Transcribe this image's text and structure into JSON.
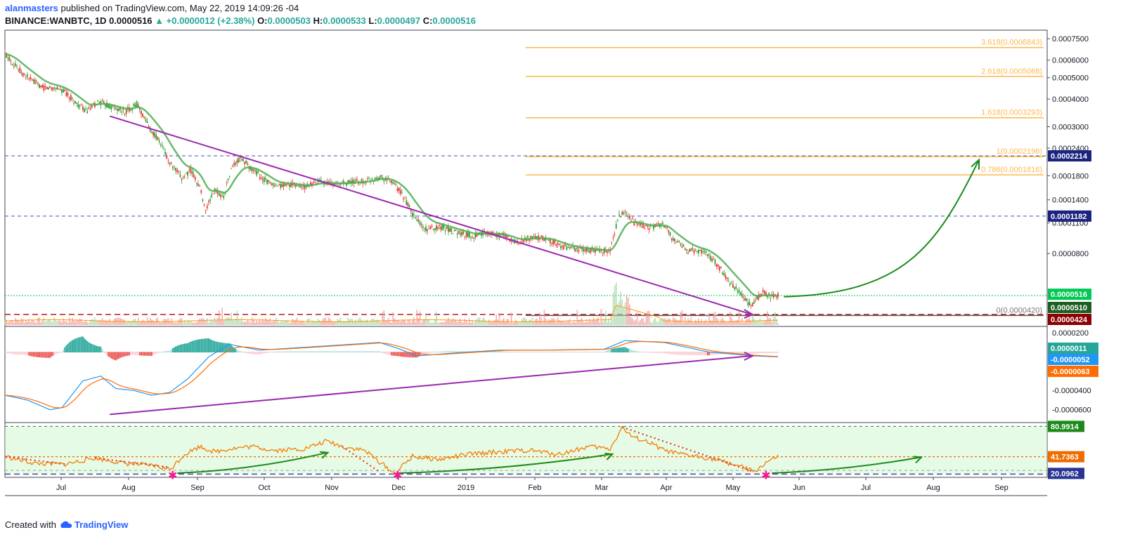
{
  "header": {
    "user": "alanmasters",
    "published": " published on TradingView.com, May 22, 2019 14:09:26 -04",
    "symbol": "BINANCE:WANBTC, 1D",
    "last": "0.0000516",
    "change": "+0.0000012 (+2.38%)",
    "open_label": "O:",
    "open": "0.0000503",
    "high_label": "H:",
    "high": "0.0000533",
    "low_label": "L:",
    "low": "0.0000497",
    "close_label": "C:",
    "close": "0.0000516"
  },
  "footer": {
    "created": "Created with",
    "brand": "TradingView"
  },
  "colors": {
    "up": "#26a69a",
    "down": "#ef5350",
    "ema": "#4caf50",
    "trend": "#9c27b0",
    "fib": "#ffb74d",
    "macd": "#2196f3",
    "signal": "#ff6d00",
    "rsi": "#f57c00",
    "arrow": "#1b8a1b",
    "blue_dash": "#3f51b5",
    "red_dash": "#b71c1c"
  },
  "chart_data": [
    {
      "type": "candlestick",
      "panel": "price",
      "scale": "log",
      "ylim": [
        3.8e-05,
        0.00082
      ],
      "y_ticks": [
        "0.0007500",
        "0.0006000",
        "0.0005000",
        "0.0004000",
        "0.0003000",
        "0.0002400",
        "0.0001800",
        "0.0001400",
        "0.0001100",
        "0.0000800"
      ],
      "x_ticks": [
        "Jul",
        "Aug",
        "Sep",
        "Oct",
        "Nov",
        "Dec",
        "2019",
        "Feb",
        "Mar",
        "Apr",
        "May",
        "Jun",
        "Jul",
        "Aug",
        "Sep"
      ],
      "fib_levels": [
        {
          "label": "3.618(0.0006843)",
          "value": 0.0006843
        },
        {
          "label": "2.618(0.0005068)",
          "value": 0.0005068
        },
        {
          "label": "1.618(0.0003293)",
          "value": 0.0003293
        },
        {
          "label": "1(0.0002196)",
          "value": 0.0002196
        },
        {
          "label": "0.786(0.0001816)",
          "value": 0.0001816
        },
        {
          "label": "0(0.0000420)",
          "value": 4.2e-05
        }
      ],
      "price_markers": [
        {
          "label": "0.0002214",
          "value": 0.0002214,
          "color": "#1a237e"
        },
        {
          "label": "0.0001182",
          "value": 0.0001182,
          "color": "#1a237e"
        },
        {
          "label": "0.0000516",
          "value": 5.16e-05,
          "color": "#00c853"
        },
        {
          "label": "0.0000510",
          "value": 5.1e-05,
          "color": "#1b5e20"
        },
        {
          "label": "0.0000424",
          "value": 4.24e-05,
          "color": "#8b0000"
        }
      ],
      "price_path": [
        [
          0,
          0.00064
        ],
        [
          12,
          0.00052
        ],
        [
          25,
          0.00045
        ],
        [
          35,
          0.00045
        ],
        [
          40,
          0.00043
        ],
        [
          48,
          0.00038
        ],
        [
          55,
          0.00035
        ],
        [
          62,
          0.00039
        ],
        [
          70,
          0.00037
        ],
        [
          80,
          0.00035
        ],
        [
          88,
          0.00038
        ],
        [
          96,
          0.0003
        ],
        [
          104,
          0.00025
        ],
        [
          110,
          0.000205
        ],
        [
          118,
          0.000175
        ],
        [
          124,
          0.00019
        ],
        [
          130,
          0.00016
        ],
        [
          134,
          0.000125
        ],
        [
          140,
          0.000155
        ],
        [
          146,
          0.000145
        ],
        [
          152,
          0.0002
        ],
        [
          158,
          0.000215
        ],
        [
          164,
          0.000195
        ],
        [
          172,
          0.000175
        ],
        [
          180,
          0.00016
        ],
        [
          190,
          0.000165
        ],
        [
          200,
          0.00016
        ],
        [
          210,
          0.00017
        ],
        [
          220,
          0.000165
        ],
        [
          230,
          0.000168
        ],
        [
          240,
          0.00017
        ],
        [
          250,
          0.000178
        ],
        [
          258,
          0.00017
        ],
        [
          266,
          0.000145
        ],
        [
          272,
          0.00012
        ],
        [
          280,
          0.000103
        ],
        [
          290,
          0.000106
        ],
        [
          300,
          0.000101
        ],
        [
          312,
          9.6e-05
        ],
        [
          322,
          9.9e-05
        ],
        [
          332,
          9.7e-05
        ],
        [
          342,
          9e-05
        ],
        [
          352,
          9.5e-05
        ],
        [
          362,
          9.3e-05
        ],
        [
          372,
          8.6e-05
        ],
        [
          382,
          8.4e-05
        ],
        [
          392,
          8.3e-05
        ],
        [
          398,
          8.2e-05
        ],
        [
          404,
          8.3e-05
        ],
        [
          410,
          0.000118
        ],
        [
          414,
          0.000125
        ],
        [
          420,
          0.00011
        ],
        [
          430,
          0.000105
        ],
        [
          440,
          0.000108
        ],
        [
          446,
          9.2e-05
        ],
        [
          456,
          8.3e-05
        ],
        [
          468,
          8.1e-05
        ],
        [
          476,
          7e-05
        ],
        [
          484,
          5.9e-05
        ],
        [
          492,
          5.2e-05
        ],
        [
          498,
          4.6e-05
        ],
        [
          502,
          5e-05
        ],
        [
          506,
          5.3e-05
        ],
        [
          512,
          5.1e-05
        ],
        [
          516,
          5.2e-05
        ]
      ],
      "trendline": [
        [
          0.000335,
          70
        ],
        [
          4.24e-05,
          500
        ]
      ],
      "projection_arrow": {
        "from": [
          5.1e-05,
          520
        ],
        "to": [
          0.000222,
          650
        ]
      }
    },
    {
      "type": "histogram+line",
      "panel": "macd",
      "y_ticks": [
        "0.0000200",
        "-0.0000400",
        "-0.0000600"
      ],
      "ylim": [
        -7.2e-05,
        2.6e-05
      ],
      "value_labels": [
        {
          "label": "0.0000011",
          "color": "#26a69a"
        },
        {
          "label": "-0.0000052",
          "color": "#2196f3"
        },
        {
          "label": "-0.0000063",
          "color": "#ff6d00"
        }
      ],
      "macd_path": [
        [
          0,
          -4.5e-05
        ],
        [
          15,
          -5e-05
        ],
        [
          30,
          -6e-05
        ],
        [
          38,
          -5.8e-05
        ],
        [
          52,
          -3e-05
        ],
        [
          64,
          -2.5e-05
        ],
        [
          74,
          -3.8e-05
        ],
        [
          86,
          -4e-05
        ],
        [
          98,
          -4.5e-05
        ],
        [
          110,
          -4.2e-05
        ],
        [
          122,
          -2.8e-05
        ],
        [
          136,
          -5e-06
        ],
        [
          150,
          8e-06
        ],
        [
          170,
          2e-06
        ],
        [
          190,
          4e-06
        ],
        [
          210,
          6e-06
        ],
        [
          230,
          8e-06
        ],
        [
          250,
          1e-05
        ],
        [
          262,
          4e-06
        ],
        [
          275,
          -4e-06
        ],
        [
          300,
          -1e-06
        ],
        [
          330,
          2e-06
        ],
        [
          360,
          2e-06
        ],
        [
          400,
          3e-06
        ],
        [
          414,
          1.2e-05
        ],
        [
          440,
          1e-05
        ],
        [
          470,
          0.0
        ],
        [
          500,
          -4e-06
        ],
        [
          516,
          -5e-06
        ]
      ],
      "trendline": [
        [
          -6.5e-05,
          70
        ],
        [
          -4e-06,
          500
        ]
      ]
    },
    {
      "type": "line",
      "panel": "rsi",
      "ylim": [
        15,
        85
      ],
      "value_labels": [
        {
          "label": "80.9914",
          "color": "#1b8a1b"
        },
        {
          "label": "41.7363",
          "color": "#ef6c00"
        },
        {
          "label": "20.0962",
          "color": "#283593"
        }
      ],
      "levels": [
        80.9914,
        41.7363,
        20.0962
      ],
      "rsi_path": [
        [
          0,
          42
        ],
        [
          20,
          33
        ],
        [
          40,
          32
        ],
        [
          60,
          40
        ],
        [
          80,
          33
        ],
        [
          100,
          30
        ],
        [
          110,
          25
        ],
        [
          120,
          45
        ],
        [
          130,
          55
        ],
        [
          140,
          48
        ],
        [
          150,
          52
        ],
        [
          165,
          55
        ],
        [
          180,
          50
        ],
        [
          200,
          52
        ],
        [
          215,
          62
        ],
        [
          225,
          55
        ],
        [
          240,
          50
        ],
        [
          250,
          35
        ],
        [
          260,
          20
        ],
        [
          272,
          42
        ],
        [
          290,
          38
        ],
        [
          310,
          45
        ],
        [
          330,
          48
        ],
        [
          350,
          50
        ],
        [
          370,
          45
        ],
        [
          390,
          55
        ],
        [
          404,
          52
        ],
        [
          412,
          80
        ],
        [
          418,
          68
        ],
        [
          430,
          60
        ],
        [
          440,
          50
        ],
        [
          450,
          45
        ],
        [
          470,
          40
        ],
        [
          490,
          30
        ],
        [
          500,
          22
        ],
        [
          508,
          34
        ],
        [
          516,
          42
        ]
      ]
    }
  ]
}
